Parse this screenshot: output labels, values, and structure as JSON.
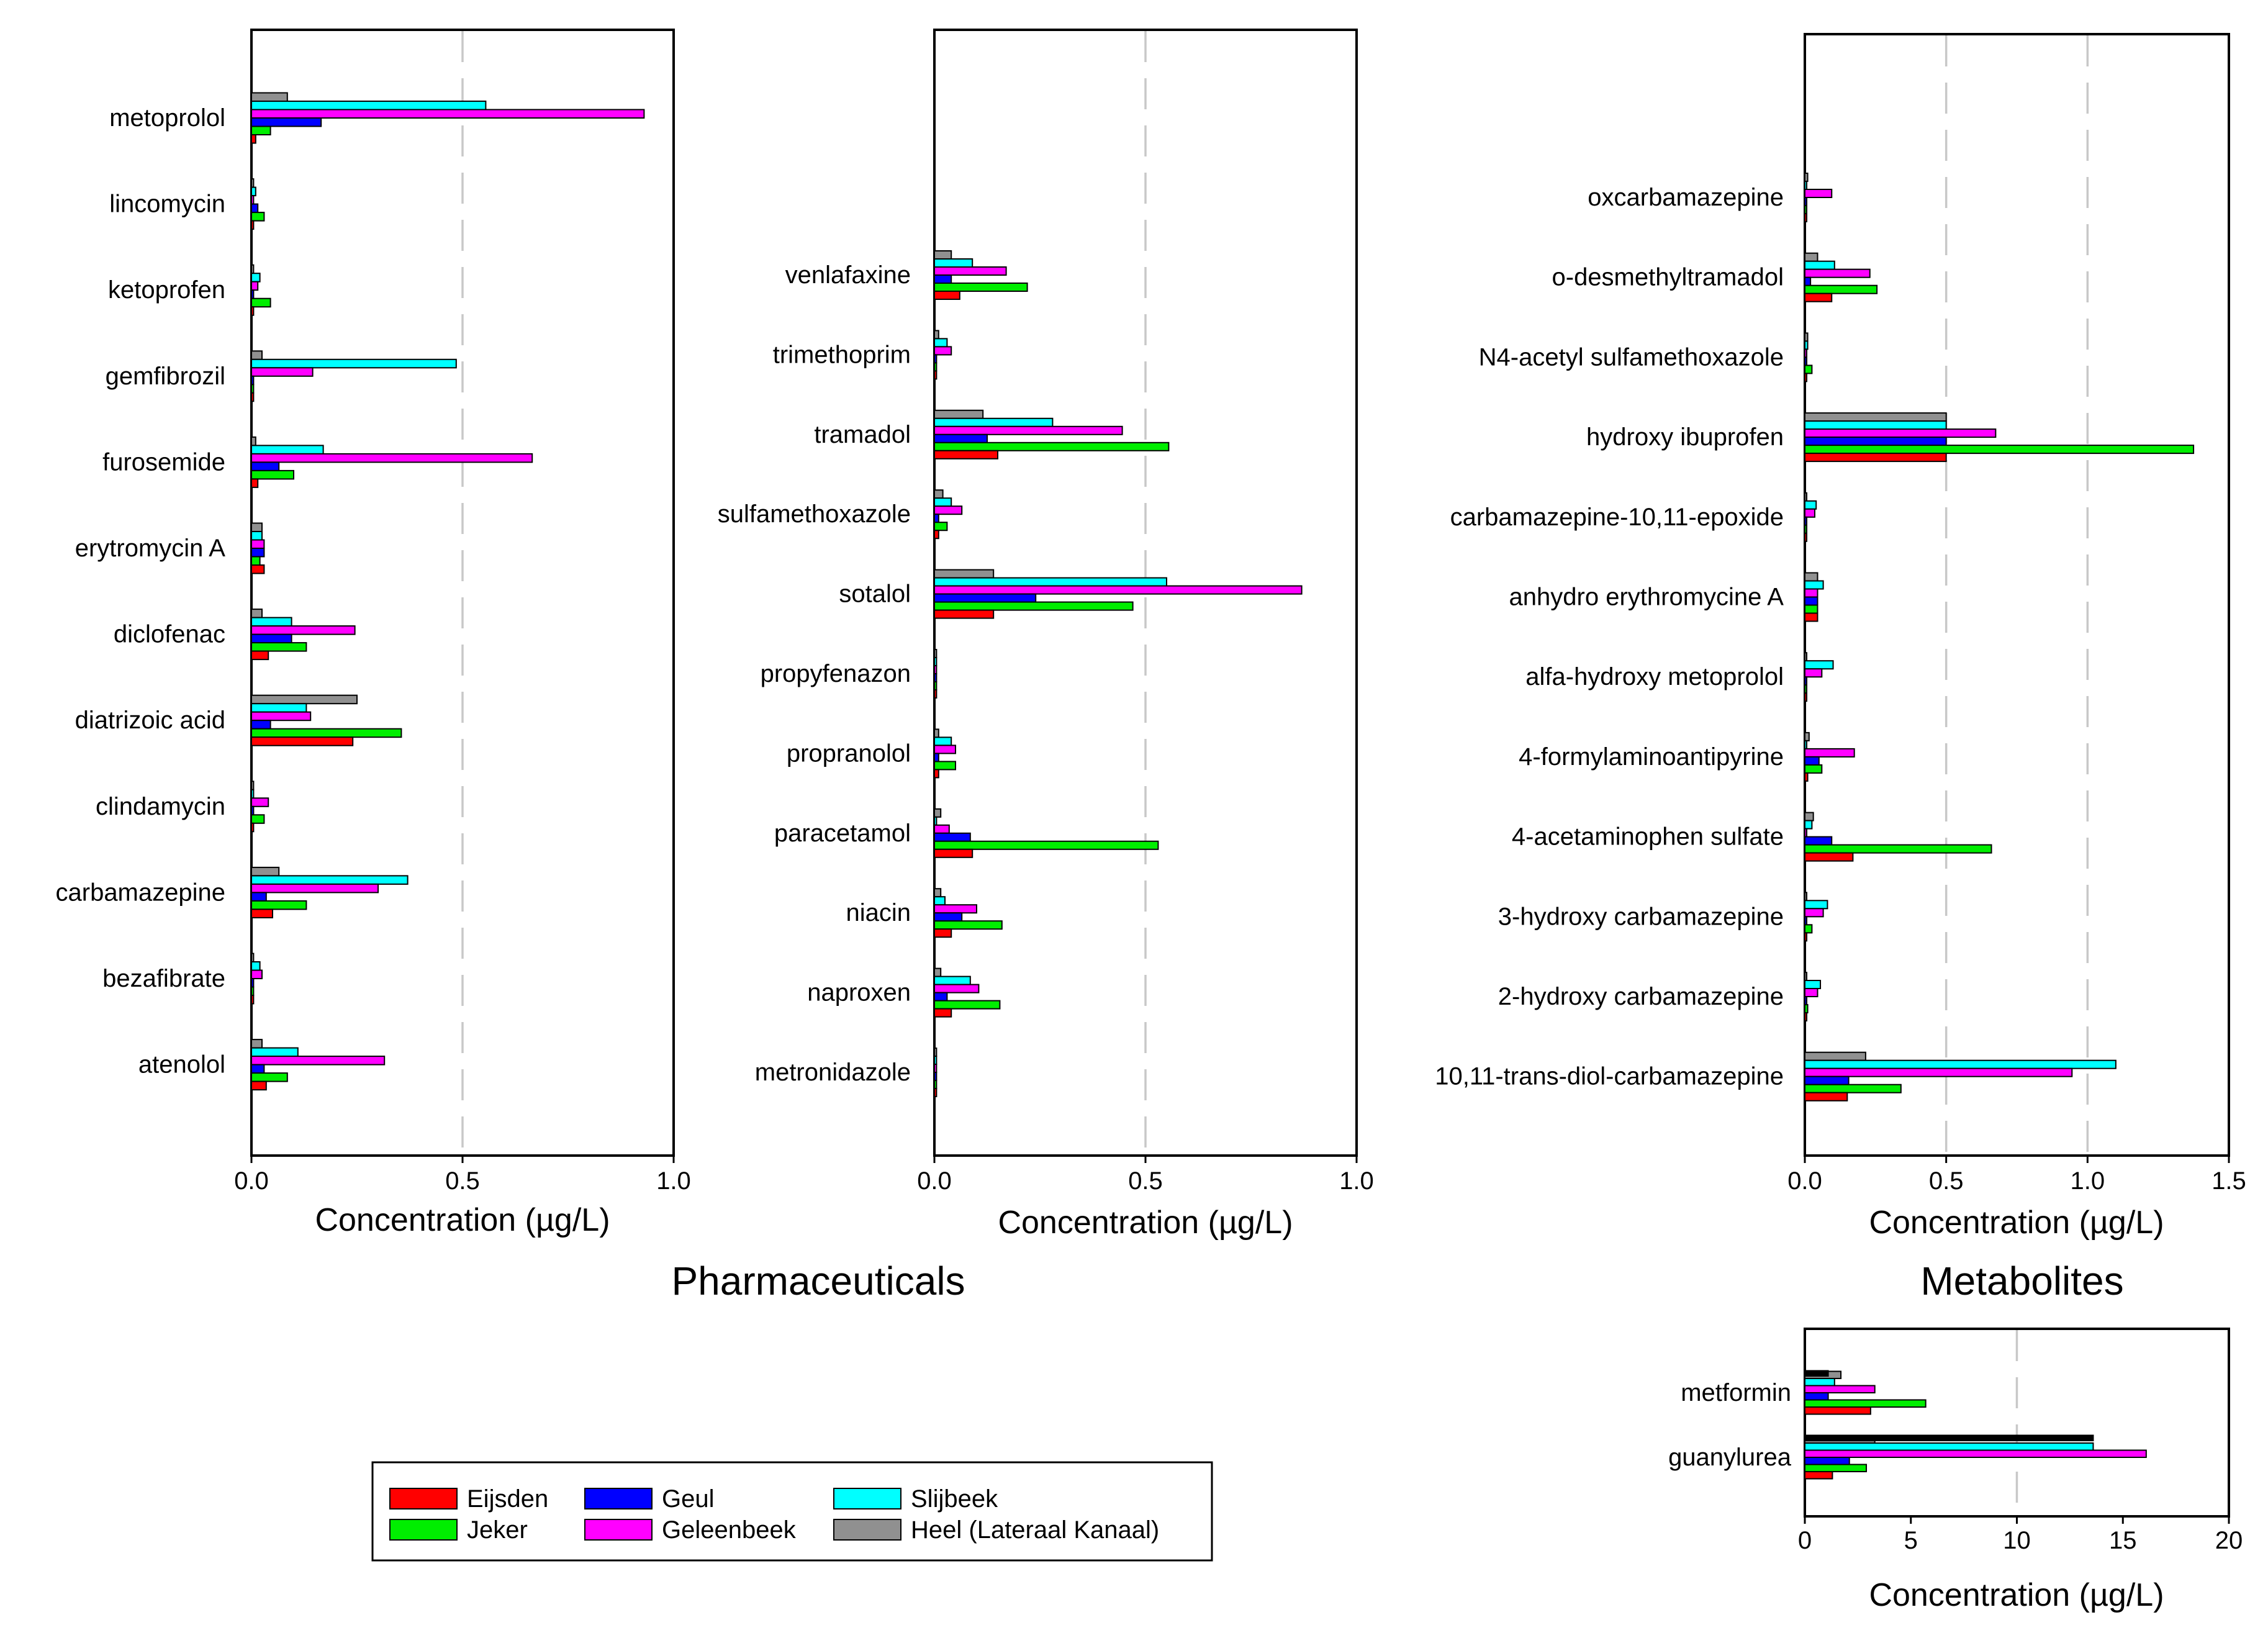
{
  "legend": {
    "entries": [
      {
        "key": "eijsden",
        "label": "Eijsden",
        "color": "#ff0000"
      },
      {
        "key": "jeker",
        "label": "Jeker",
        "color": "#00ee00"
      },
      {
        "key": "geul",
        "label": "Geul",
        "color": "#0000ff"
      },
      {
        "key": "geleenbeek",
        "label": "Geleenbeek",
        "color": "#ff00ff"
      },
      {
        "key": "slijbeek",
        "label": "Slijbeek",
        "color": "#00ffff"
      },
      {
        "key": "heel",
        "label": "Heel (Lateraal Kanaal)",
        "color": "#909090"
      }
    ]
  },
  "titles": {
    "pharmaceuticals": "Pharmaceuticals",
    "metabolites": "Metabolites"
  },
  "chart_data": [
    {
      "id": "pharma1",
      "type": "bar",
      "orientation": "horizontal",
      "xlabel": "Concentration (µg/L)",
      "xlim": [
        0,
        1.0
      ],
      "xticks": [
        "0.0",
        "0.5",
        "1.0"
      ],
      "xtick_values": [
        0,
        0.5,
        1.0
      ],
      "reference_lines": [
        0.5
      ],
      "series_order_top_to_bottom": [
        "heel",
        "slijbeek",
        "geleenbeek",
        "geul",
        "jeker",
        "eijsden"
      ],
      "categories": [
        "metoprolol",
        "lincomycin",
        "ketoprofen",
        "gemfibrozil",
        "furosemide",
        "erytromycin A",
        "diclofenac",
        "diatrizoic acid",
        "clindamycin",
        "carbamazepine",
        "bezafibrate",
        "atenolol"
      ],
      "series": [
        {
          "name": "Eijsden",
          "key": "eijsden",
          "values": [
            0.01,
            0.005,
            0.005,
            0.005,
            0.015,
            0.03,
            0.04,
            0.24,
            0.005,
            0.05,
            0.005,
            0.035
          ]
        },
        {
          "name": "Jeker",
          "key": "jeker",
          "values": [
            0.045,
            0.03,
            0.045,
            0.005,
            0.1,
            0.02,
            0.13,
            0.355,
            0.03,
            0.13,
            0.005,
            0.085
          ]
        },
        {
          "name": "Geul",
          "key": "geul",
          "values": [
            0.165,
            0.015,
            0.005,
            0.005,
            0.065,
            0.03,
            0.095,
            0.045,
            0.005,
            0.035,
            0.005,
            0.03
          ]
        },
        {
          "name": "Geleenbeek",
          "key": "geleenbeek",
          "values": [
            0.93,
            0.005,
            0.015,
            0.145,
            0.665,
            0.03,
            0.245,
            0.14,
            0.04,
            0.3,
            0.025,
            0.315
          ]
        },
        {
          "name": "Slijbeek",
          "key": "slijbeek",
          "values": [
            0.555,
            0.01,
            0.02,
            0.485,
            0.17,
            0.025,
            0.095,
            0.13,
            0.005,
            0.37,
            0.02,
            0.11
          ]
        },
        {
          "name": "Heel (Lateraal Kanaal)",
          "key": "heel",
          "values": [
            0.085,
            0.005,
            0.005,
            0.025,
            0.01,
            0.025,
            0.025,
            0.25,
            0.005,
            0.065,
            0.005,
            0.025
          ]
        }
      ]
    },
    {
      "id": "pharma2",
      "type": "bar",
      "orientation": "horizontal",
      "xlabel": "Concentration (µg/L)",
      "xlim": [
        0,
        1.0
      ],
      "xticks": [
        "0.0",
        "0.5",
        "1.0"
      ],
      "xtick_values": [
        0,
        0.5,
        1.0
      ],
      "reference_lines": [
        0.5
      ],
      "series_order_top_to_bottom": [
        "heel",
        "slijbeek",
        "geleenbeek",
        "geul",
        "jeker",
        "eijsden"
      ],
      "categories": [
        "venlafaxine",
        "trimethoprim",
        "tramadol",
        "sulfamethoxazole",
        "sotalol",
        "propyfenazon",
        "propranolol",
        "paracetamol",
        "niacin",
        "naproxen",
        "metronidazole"
      ],
      "series": [
        {
          "name": "Eijsden",
          "key": "eijsden",
          "values": [
            0.06,
            0.005,
            0.15,
            0.01,
            0.14,
            0.005,
            0.01,
            0.09,
            0.04,
            0.04,
            0.005
          ]
        },
        {
          "name": "Jeker",
          "key": "jeker",
          "values": [
            0.22,
            0.005,
            0.555,
            0.03,
            0.47,
            0.005,
            0.05,
            0.53,
            0.16,
            0.155,
            0.005
          ]
        },
        {
          "name": "Geul",
          "key": "geul",
          "values": [
            0.04,
            0.005,
            0.125,
            0.01,
            0.24,
            0.005,
            0.01,
            0.085,
            0.065,
            0.03,
            0.005
          ]
        },
        {
          "name": "Geleenbeek",
          "key": "geleenbeek",
          "values": [
            0.17,
            0.04,
            0.445,
            0.065,
            0.87,
            0.005,
            0.05,
            0.035,
            0.1,
            0.105,
            0.005
          ]
        },
        {
          "name": "Slijbeek",
          "key": "slijbeek",
          "values": [
            0.09,
            0.03,
            0.28,
            0.04,
            0.55,
            0.005,
            0.04,
            0.005,
            0.025,
            0.085,
            0.005
          ]
        },
        {
          "name": "Heel (Lateraal Kanaal)",
          "key": "heel",
          "values": [
            0.04,
            0.01,
            0.115,
            0.02,
            0.14,
            0.005,
            0.01,
            0.015,
            0.015,
            0.015,
            0.005
          ]
        }
      ]
    },
    {
      "id": "metabolites",
      "type": "bar",
      "orientation": "horizontal",
      "xlabel": "Concentration (µg/L)",
      "xlim": [
        0,
        1.5
      ],
      "xticks": [
        "0.0",
        "0.5",
        "1.0",
        "1.5"
      ],
      "xtick_values": [
        0,
        0.5,
        1.0,
        1.5
      ],
      "reference_lines": [
        0.5,
        1.0
      ],
      "series_order_top_to_bottom": [
        "heel",
        "slijbeek",
        "geleenbeek",
        "geul",
        "jeker",
        "eijsden"
      ],
      "categories": [
        "oxcarbamazepine",
        "o-desmethyltramadol",
        "N4-acetyl sulfamethoxazole",
        "hydroxy ibuprofen",
        "carbamazepine-10,11-epoxide",
        "anhydro erythromycine A",
        "alfa-hydroxy metoprolol",
        "4-formylaminoantipyrine",
        "4-acetaminophen sulfate",
        "3-hydroxy carbamazepine",
        "2-hydroxy carbamazepine",
        "10,11-trans-diol-carbamazepine"
      ],
      "series": [
        {
          "name": "Eijsden",
          "key": "eijsden",
          "values": [
            0.005,
            0.095,
            0.005,
            0.5,
            0.005,
            0.045,
            0.005,
            0.01,
            0.17,
            0.005,
            0.005,
            0.15
          ]
        },
        {
          "name": "Jeker",
          "key": "jeker",
          "values": [
            0.005,
            0.255,
            0.025,
            1.375,
            0.005,
            0.045,
            0.005,
            0.06,
            0.66,
            0.025,
            0.01,
            0.34
          ]
        },
        {
          "name": "Geul",
          "key": "geul",
          "values": [
            0.005,
            0.02,
            0.005,
            0.5,
            0.005,
            0.045,
            0.005,
            0.05,
            0.095,
            0.005,
            0.005,
            0.155
          ]
        },
        {
          "name": "Geleenbeek",
          "key": "geleenbeek",
          "values": [
            0.095,
            0.23,
            0.005,
            0.675,
            0.035,
            0.045,
            0.06,
            0.175,
            0.005,
            0.065,
            0.045,
            0.945
          ]
        },
        {
          "name": "Slijbeek",
          "key": "slijbeek",
          "values": [
            0.005,
            0.105,
            0.01,
            0.5,
            0.04,
            0.065,
            0.1,
            0.005,
            0.025,
            0.08,
            0.055,
            1.1
          ]
        },
        {
          "name": "Heel (Lateraal Kanaal)",
          "key": "heel",
          "values": [
            0.01,
            0.045,
            0.01,
            0.5,
            0.005,
            0.045,
            0.005,
            0.015,
            0.03,
            0.005,
            0.005,
            0.215
          ]
        }
      ]
    },
    {
      "id": "metabolites_high",
      "type": "bar",
      "orientation": "horizontal",
      "xlabel": "Concentration (µg/L)",
      "xlim": [
        0,
        20
      ],
      "xticks": [
        "0",
        "5",
        "10",
        "15",
        "20"
      ],
      "xtick_values": [
        0,
        5,
        10,
        15,
        20
      ],
      "reference_lines": [
        10
      ],
      "series_order_top_to_bottom": [
        "heel",
        "slijbeek",
        "geleenbeek",
        "geul",
        "jeker",
        "eijsden"
      ],
      "categories": [
        "metformin",
        "guanylurea"
      ],
      "series": [
        {
          "name": "Eijsden",
          "key": "eijsden",
          "values": [
            3.1,
            1.3
          ]
        },
        {
          "name": "Jeker",
          "key": "jeker",
          "values": [
            5.7,
            2.9
          ]
        },
        {
          "name": "Geul",
          "key": "geul",
          "values": [
            1.1,
            2.1
          ]
        },
        {
          "name": "Geleenbeek",
          "key": "geleenbeek",
          "values": [
            3.3,
            16.1
          ]
        },
        {
          "name": "Slijbeek",
          "key": "slijbeek",
          "values": [
            1.4,
            13.6
          ]
        },
        {
          "name": "Heel (Lateraal Kanaal)",
          "key": "heel",
          "values": [
            1.7,
            3.3
          ]
        }
      ],
      "extra_bars": [
        {
          "category": "metformin",
          "label": "overlay",
          "value": 1.1,
          "color": "#000000"
        },
        {
          "category": "guanylurea",
          "label": "overlay",
          "value": 13.6,
          "color": "#000000"
        }
      ]
    }
  ]
}
